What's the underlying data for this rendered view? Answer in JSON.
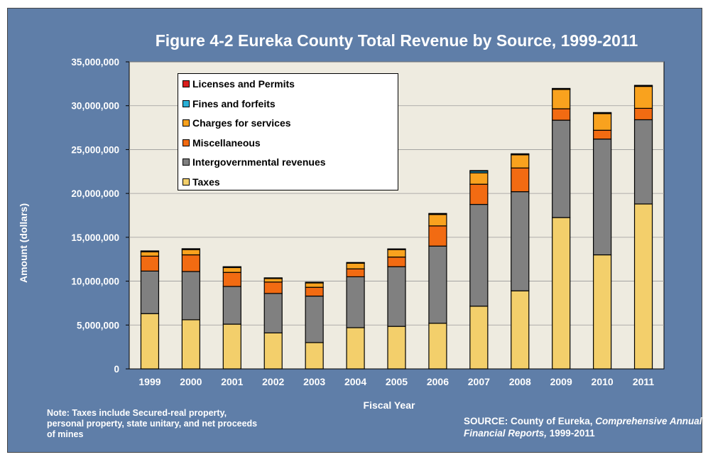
{
  "title": "Figure 4-2 Eureka County Total Revenue by Source, 1999-2011",
  "note": "Note: Taxes include Secured-real property, personal property, state unitary, and net proceeds of mines",
  "source": {
    "prefix": "SOURCE: County of Eureka, ",
    "italic": "Comprehensive Annual Financial Reports,",
    "suffix": " 1999-2011"
  },
  "colors": {
    "frame": "#5f7ea8",
    "plot_bg": "#eeebe0"
  },
  "chart_data": {
    "type": "bar",
    "stacked": true,
    "title": "Figure 4-2 Eureka County Total Revenue by Source, 1999-2011",
    "xlabel": "Fiscal Year",
    "ylabel": "Amount (dollars)",
    "ylim": [
      0,
      35000000
    ],
    "yticks": [
      "0",
      "5,000,000",
      "10,000,000",
      "15,000,000",
      "20,000,000",
      "25,000,000",
      "30,000,000",
      "35,000,000"
    ],
    "ytick_values": [
      0,
      5000000,
      10000000,
      15000000,
      20000000,
      25000000,
      30000000,
      35000000
    ],
    "grid": true,
    "legend_position": "top-left",
    "categories": [
      "1999",
      "2000",
      "2001",
      "2002",
      "2003",
      "2004",
      "2005",
      "2006",
      "2007",
      "2008",
      "2009",
      "2010",
      "2011"
    ],
    "series": [
      {
        "name": "Taxes",
        "color": "#f3cf6b",
        "values": [
          6300000,
          5600000,
          5100000,
          4100000,
          3000000,
          4700000,
          4850000,
          5200000,
          7150000,
          8900000,
          17250000,
          13000000,
          18800000
        ]
      },
      {
        "name": "Intergovernmental revenues",
        "color": "#808080",
        "values": [
          4850000,
          5500000,
          4300000,
          4500000,
          5300000,
          5800000,
          6800000,
          8800000,
          11600000,
          11300000,
          11100000,
          13200000,
          9600000
        ]
      },
      {
        "name": "Miscellaneous",
        "color": "#f26b12",
        "values": [
          1700000,
          1900000,
          1600000,
          1300000,
          1000000,
          900000,
          1100000,
          2300000,
          2300000,
          2700000,
          1300000,
          1000000,
          1300000
        ]
      },
      {
        "name": "Charges for services",
        "color": "#f9a21e",
        "values": [
          500000,
          600000,
          550000,
          400000,
          500000,
          650000,
          850000,
          1300000,
          1300000,
          1500000,
          2200000,
          1900000,
          2500000
        ]
      },
      {
        "name": "Fines and forfeits",
        "color": "#2ab0d6",
        "values": [
          60000,
          60000,
          60000,
          40000,
          40000,
          40000,
          40000,
          60000,
          200000,
          60000,
          60000,
          60000,
          60000
        ]
      },
      {
        "name": "Licenses and Permits",
        "color": "#d9201e",
        "values": [
          40000,
          40000,
          40000,
          40000,
          40000,
          40000,
          40000,
          60000,
          60000,
          60000,
          60000,
          60000,
          60000
        ]
      }
    ]
  }
}
